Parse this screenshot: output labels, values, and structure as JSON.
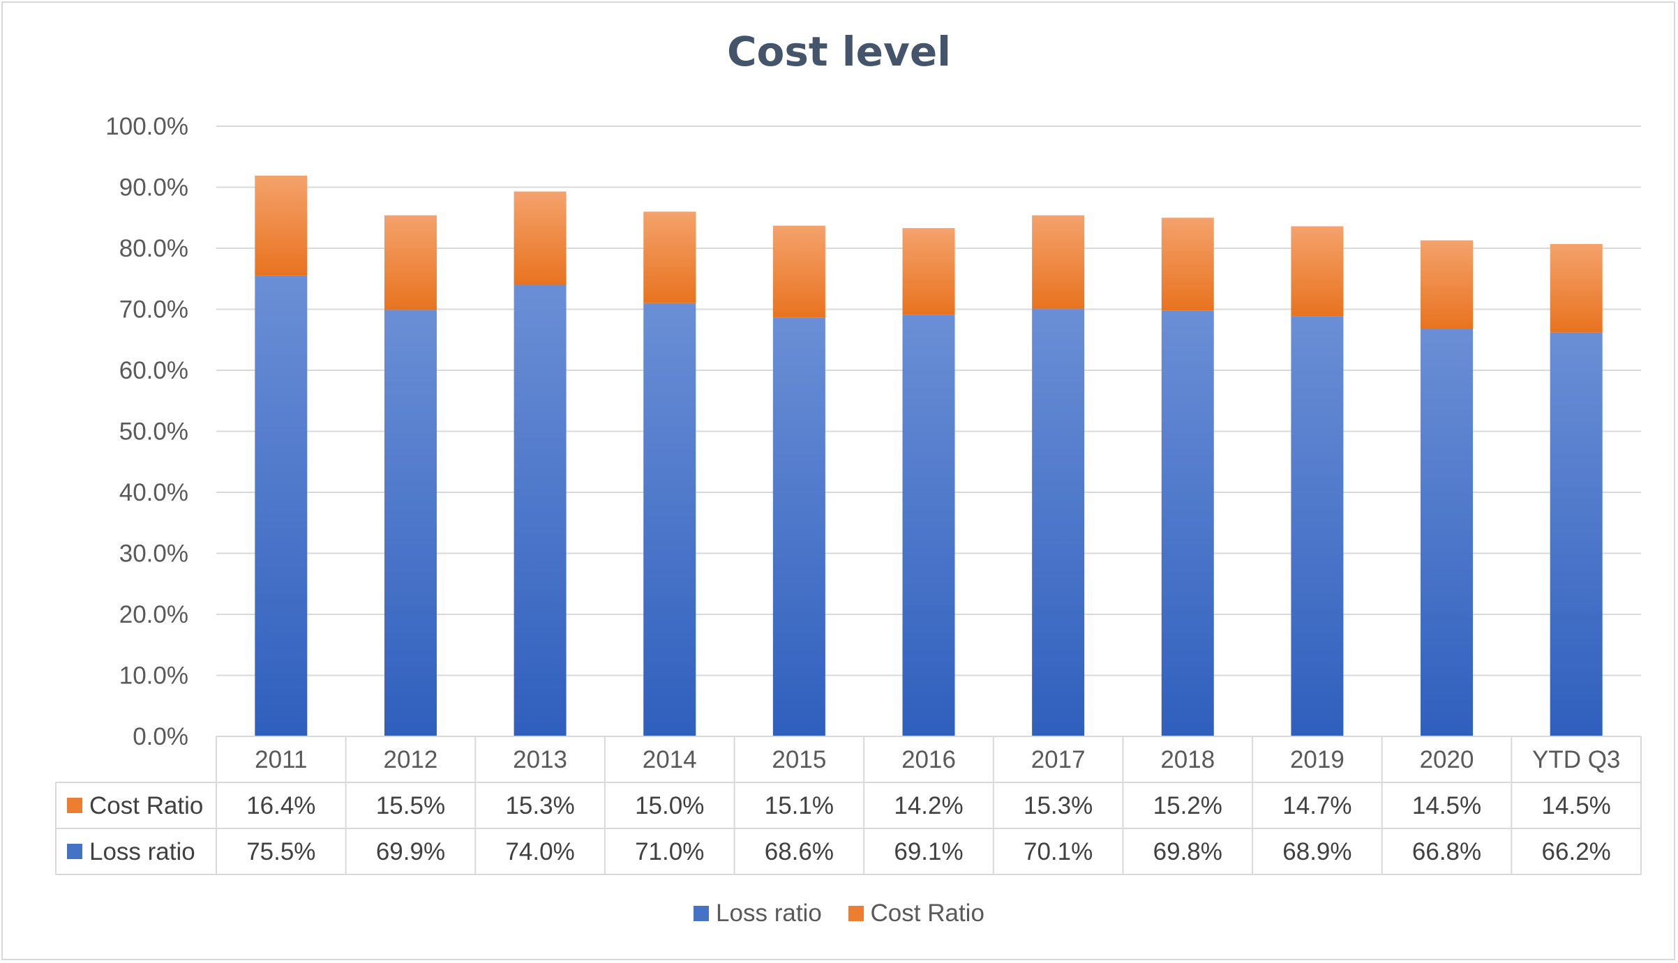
{
  "colors": {
    "loss": "#4472c4",
    "loss_light": "#6b8fd6",
    "cost": "#ed7d31",
    "cost_light": "#f4a26c",
    "grid": "#d9d9d9",
    "text": "#595959"
  },
  "chart_data": {
    "type": "bar",
    "stacked": true,
    "title": "Cost level",
    "categories": [
      "2011",
      "2012",
      "2013",
      "2014",
      "2015",
      "2016",
      "2017",
      "2018",
      "2019",
      "2020",
      "YTD Q3"
    ],
    "series": [
      {
        "name": "Loss ratio",
        "values": [
          75.5,
          69.9,
          74.0,
          71.0,
          68.6,
          69.1,
          70.1,
          69.8,
          68.9,
          66.8,
          66.2
        ],
        "labels": [
          "75.5%",
          "69.9%",
          "74.0%",
          "71.0%",
          "68.6%",
          "69.1%",
          "70.1%",
          "69.8%",
          "68.9%",
          "66.8%",
          "66.2%"
        ]
      },
      {
        "name": "Cost Ratio",
        "values": [
          16.4,
          15.5,
          15.3,
          15.0,
          15.1,
          14.2,
          15.3,
          15.2,
          14.7,
          14.5,
          14.5
        ],
        "labels": [
          "16.4%",
          "15.5%",
          "15.3%",
          "15.0%",
          "15.1%",
          "14.2%",
          "15.3%",
          "15.2%",
          "14.7%",
          "14.5%",
          "14.5%"
        ]
      }
    ],
    "ylim": [
      0,
      100
    ],
    "yticks": [
      "0.0%",
      "10.0%",
      "20.0%",
      "30.0%",
      "40.0%",
      "50.0%",
      "60.0%",
      "70.0%",
      "80.0%",
      "90.0%",
      "100.0%"
    ],
    "data_table": true,
    "legend": {
      "position": "bottom",
      "entries": [
        "Loss ratio",
        "Cost Ratio"
      ]
    },
    "grid": true
  }
}
